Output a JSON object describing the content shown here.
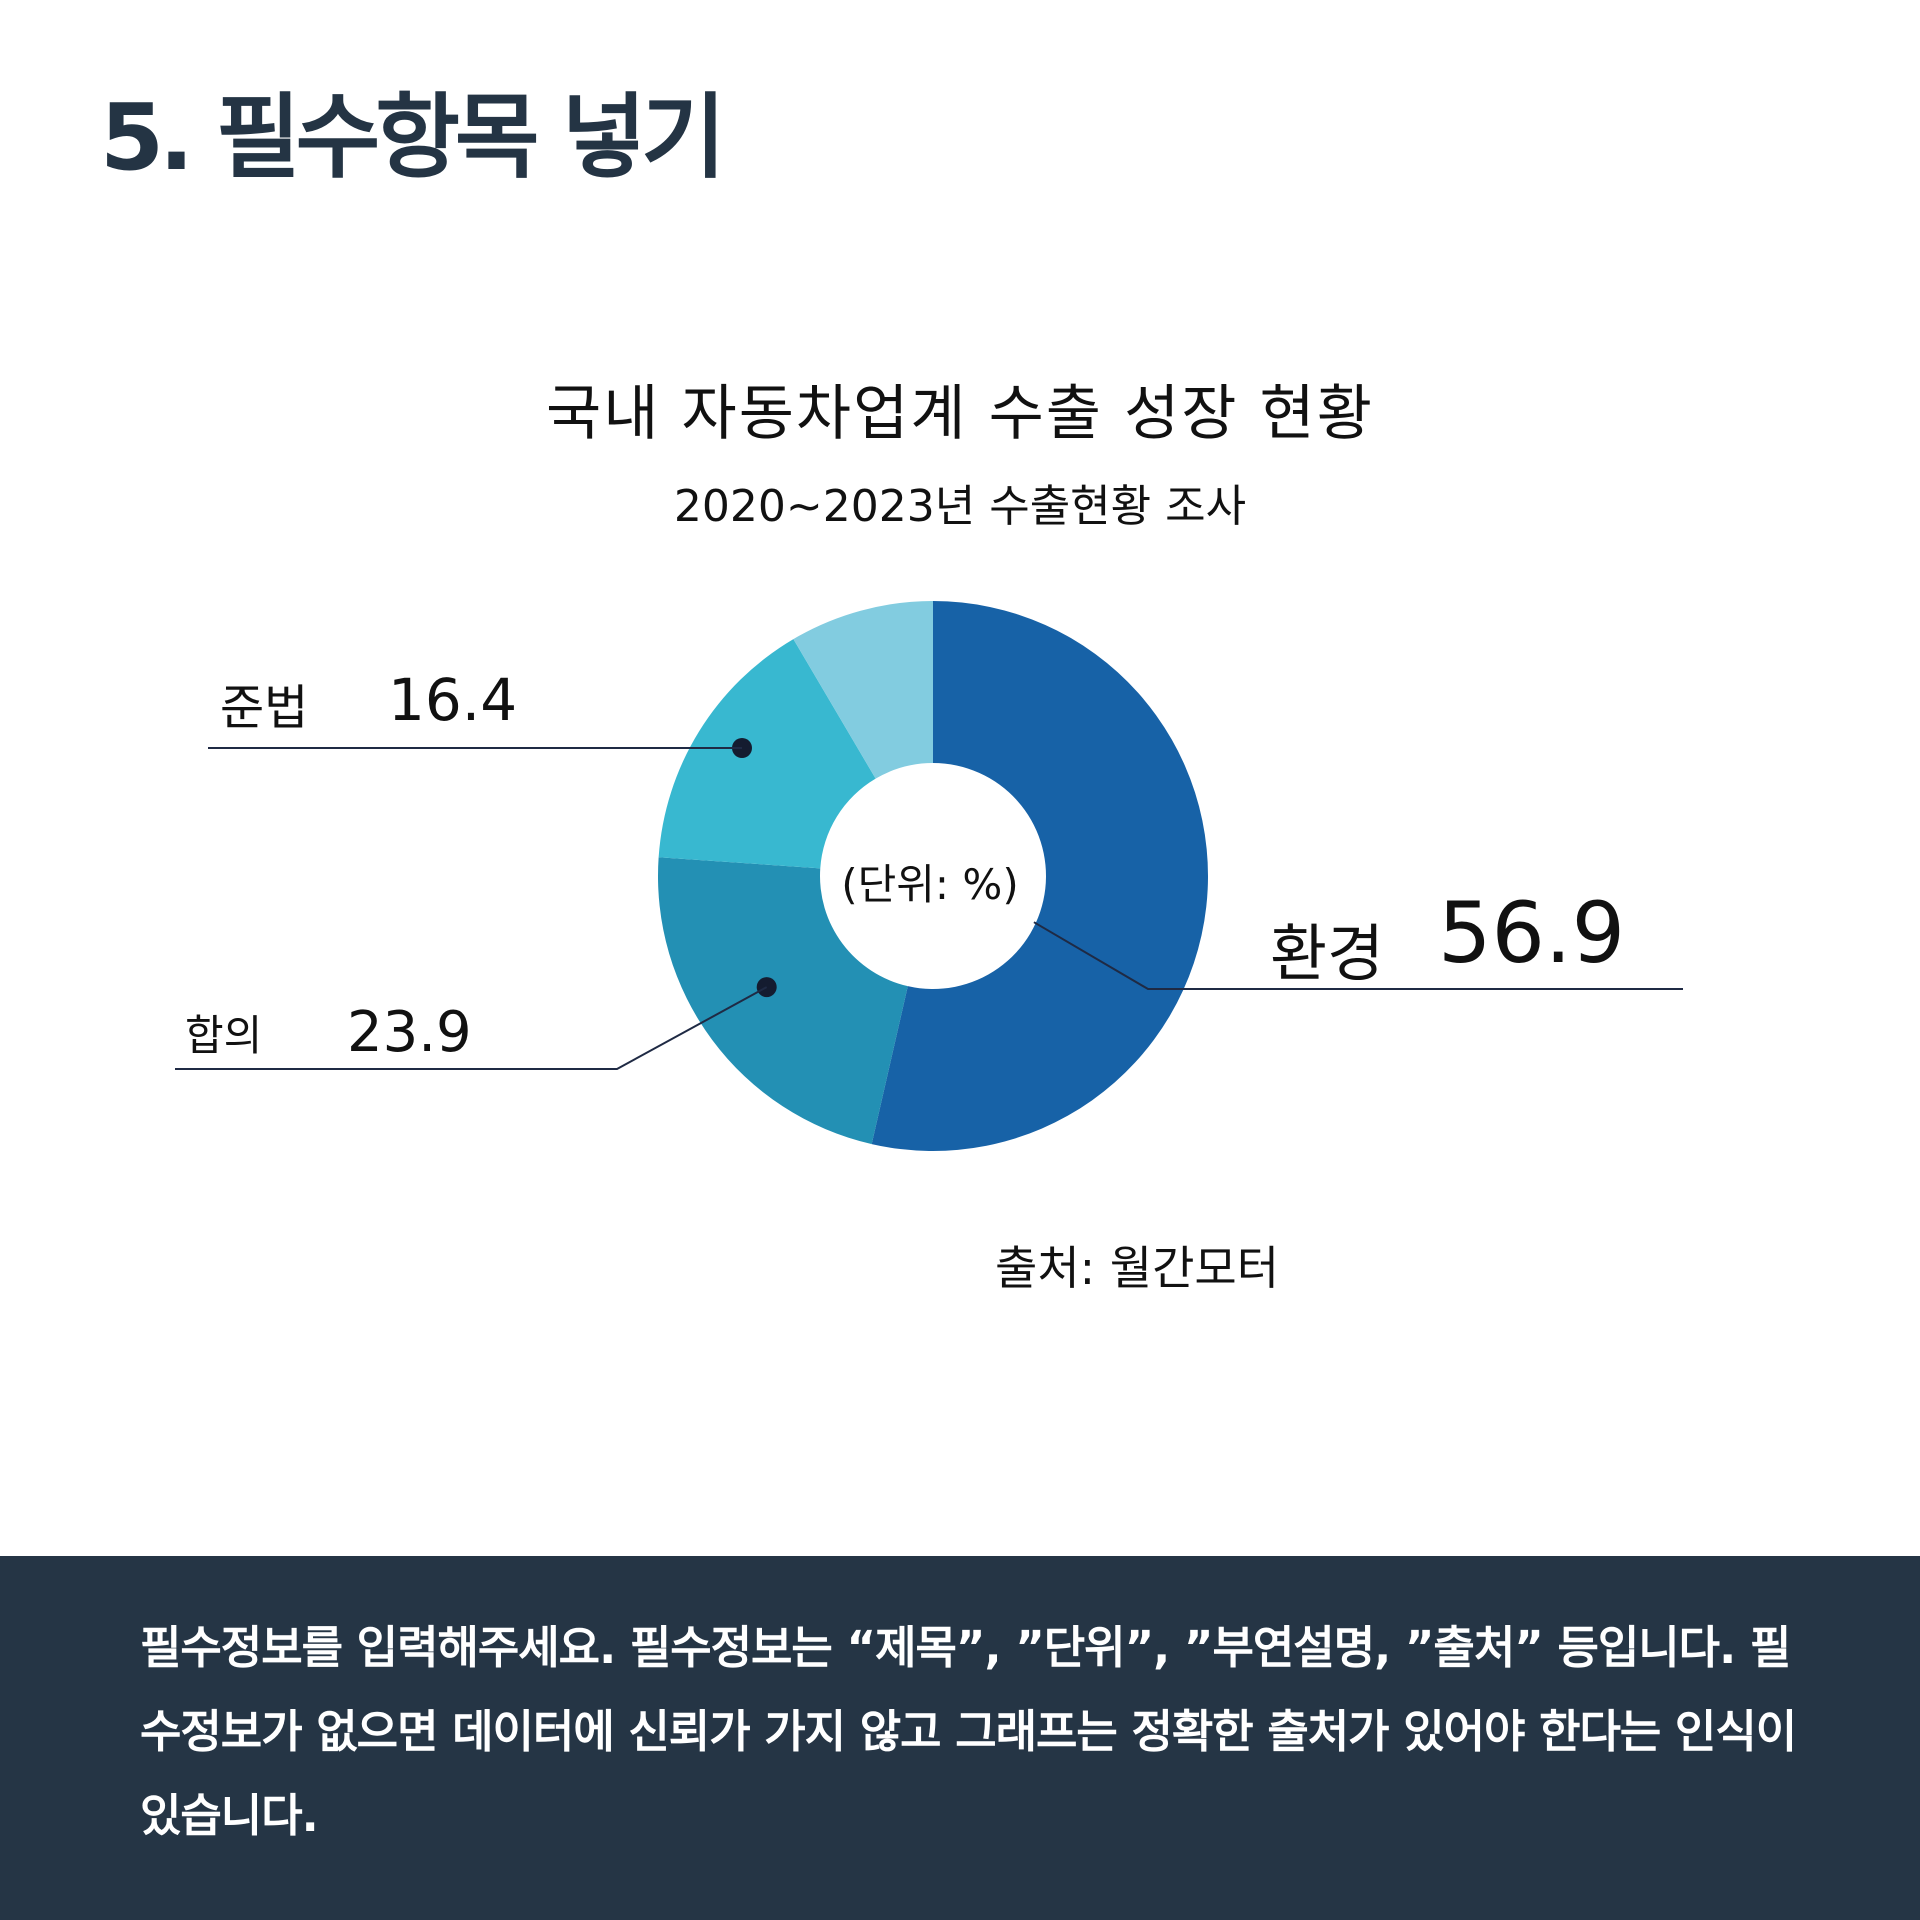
{
  "heading": "5. 필수항목 넣기",
  "chart_data": {
    "type": "pie",
    "title": "국내 자동차업계 수출 성장 현황",
    "subtitle": "2020~2023년 수출현황 조사",
    "center_label": "(단위: %)",
    "source": "출처: 월간모터",
    "series": [
      {
        "name": "환경",
        "value": 56.9,
        "label": "56.9",
        "color": "#1762A7"
      },
      {
        "name": "합의",
        "value": 23.9,
        "label": "23.9",
        "color": "#2390B4"
      },
      {
        "name": "준법",
        "value": 16.4,
        "label": "16.4",
        "color": "#38B8D0"
      },
      {
        "name": "",
        "value": 9.0,
        "label": "",
        "color": "#82CCE0"
      }
    ],
    "colors": {
      "callout_line": "#1F2A44",
      "callout_dot": "#141C30"
    }
  },
  "footer": {
    "text": "필수정보를 입력해주세요. 필수정보는 “제목”, ”단위”, ”부연설명, ”출처” 등입니다. 필수정보가 없으면 데이터에 신뢰가 가지 않고 그래프는 정확한 출처가 있어야 한다는 인식이 있습니다.",
    "background": "#253545"
  }
}
